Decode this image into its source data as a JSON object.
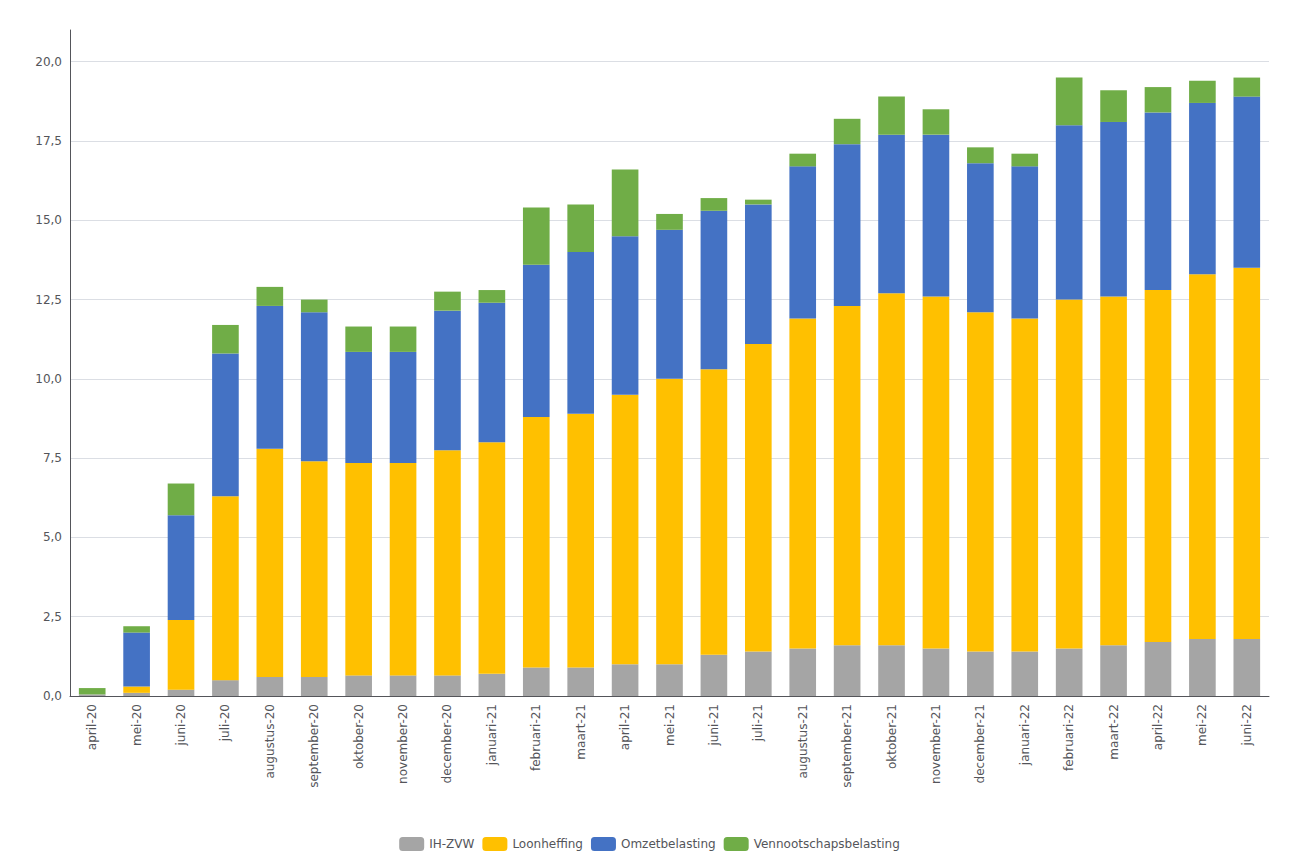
{
  "chart_data": {
    "type": "bar",
    "stacked": true,
    "categories": [
      "april-20",
      "mei-20",
      "juni-20",
      "juli-20",
      "augustus-20",
      "september-20",
      "oktober-20",
      "november-20",
      "december-20",
      "januari-21",
      "februari-21",
      "maart-21",
      "april-21",
      "mei-21",
      "juni-21",
      "juli-21",
      "augustus-21",
      "september-21",
      "oktober-21",
      "november-21",
      "december-21",
      "januari-22",
      "februari-22",
      "maart-22",
      "april-22",
      "mei-22",
      "juni-22"
    ],
    "series": [
      {
        "name": "IH-ZVW",
        "color": "#A5A5A5",
        "values": [
          0.05,
          0.1,
          0.2,
          0.5,
          0.6,
          0.6,
          0.65,
          0.65,
          0.65,
          0.7,
          0.9,
          0.9,
          1.0,
          1.0,
          1.3,
          1.4,
          1.5,
          1.6,
          1.6,
          1.5,
          1.4,
          1.4,
          1.5,
          1.6,
          1.7,
          1.8,
          1.8
        ]
      },
      {
        "name": "Loonheffing",
        "color": "#FFC000",
        "values": [
          0.0,
          0.2,
          2.2,
          5.8,
          7.2,
          6.8,
          6.7,
          6.7,
          7.1,
          7.3,
          7.9,
          8.0,
          8.5,
          9.0,
          9.0,
          9.7,
          10.4,
          10.7,
          11.1,
          11.1,
          10.7,
          10.5,
          11.0,
          11.0,
          11.1,
          11.5,
          11.7
        ]
      },
      {
        "name": "Omzetbelasting",
        "color": "#4472C4",
        "values": [
          0.0,
          1.7,
          3.3,
          4.5,
          4.5,
          4.7,
          3.5,
          3.5,
          4.4,
          4.4,
          4.8,
          5.1,
          5.0,
          4.7,
          5.0,
          4.4,
          4.8,
          5.1,
          5.0,
          5.1,
          4.7,
          4.8,
          5.5,
          5.5,
          5.6,
          5.4,
          5.4
        ]
      },
      {
        "name": "Vennootschapsbelasting",
        "color": "#70AD47",
        "values": [
          0.2,
          0.2,
          1.0,
          0.9,
          0.6,
          0.4,
          0.8,
          0.8,
          0.6,
          0.4,
          1.8,
          1.5,
          2.1,
          0.5,
          0.4,
          0.15,
          0.4,
          0.8,
          1.2,
          0.8,
          0.5,
          0.4,
          1.5,
          1.0,
          0.8,
          0.7,
          0.6
        ]
      }
    ],
    "ylim": [
      0,
      21
    ],
    "yticks": [
      {
        "value": 0.0,
        "label": "0,0"
      },
      {
        "value": 2.5,
        "label": "2,5"
      },
      {
        "value": 5.0,
        "label": "5,0"
      },
      {
        "value": 7.5,
        "label": "7,5"
      },
      {
        "value": 10.0,
        "label": "10,0"
      },
      {
        "value": 12.5,
        "label": "12,5"
      },
      {
        "value": 15.0,
        "label": "15,0"
      },
      {
        "value": 17.5,
        "label": "17,5"
      },
      {
        "value": 20.0,
        "label": "20,0"
      }
    ],
    "grid": true,
    "legend": "bottom"
  }
}
